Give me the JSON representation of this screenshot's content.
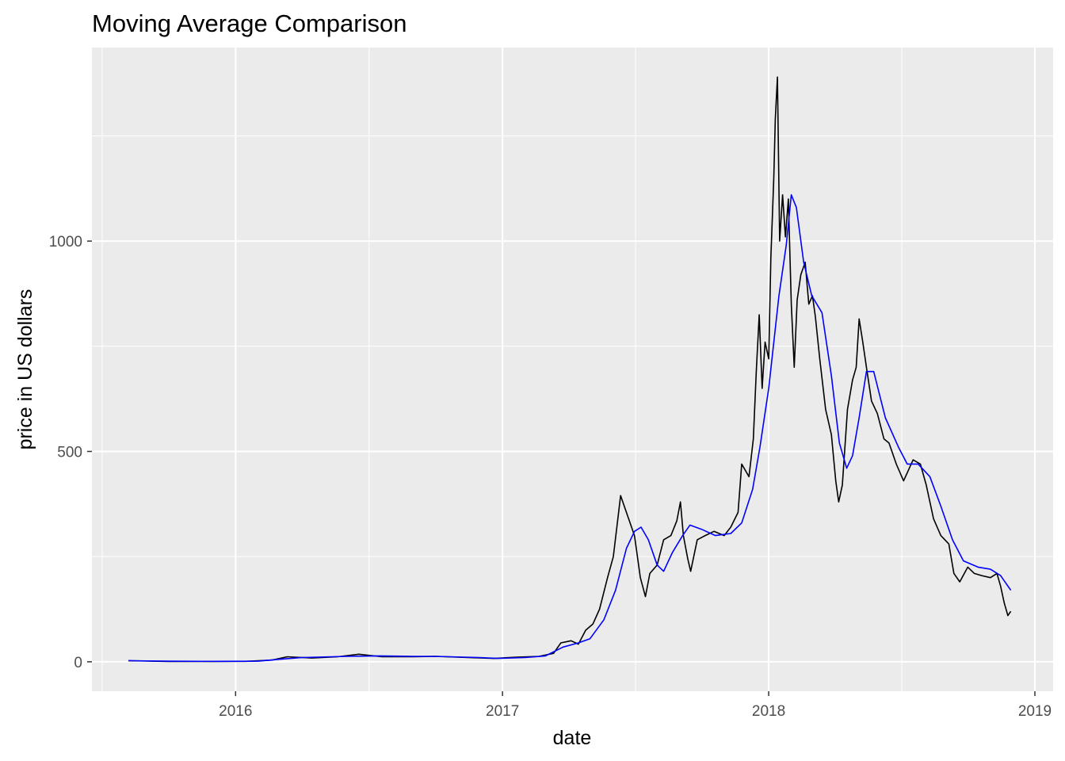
{
  "chart_data": {
    "type": "line",
    "title": "Moving Average Comparison",
    "xlabel": "date",
    "ylabel": "price in US dollars",
    "xlim": [
      "2015-06-18",
      "2019-01-26"
    ],
    "ylim": [
      -70,
      1460
    ],
    "x_ticks": [
      "2016-01-01",
      "2017-01-01",
      "2018-01-01",
      "2019-01-01"
    ],
    "x_tick_labels": [
      "2016",
      "2017",
      "2018",
      "2019"
    ],
    "y_ticks": [
      0,
      500,
      1000
    ],
    "y_tick_labels": [
      "0",
      "500",
      "1000"
    ],
    "y_minor_ticks": [
      250,
      750,
      1250
    ],
    "grid": true,
    "legend": "none",
    "background": "#ebebeb",
    "grid_color": "#ffffff",
    "series": [
      {
        "color": "#000000",
        "points": [
          [
            "2015-08-07",
            2.8
          ],
          [
            "2015-10-01",
            0.6
          ],
          [
            "2015-12-01",
            0.9
          ],
          [
            "2016-01-15",
            1.1
          ],
          [
            "2016-02-20",
            4
          ],
          [
            "2016-03-12",
            12
          ],
          [
            "2016-04-15",
            9
          ],
          [
            "2016-05-20",
            12
          ],
          [
            "2016-06-18",
            18
          ],
          [
            "2016-07-20",
            12
          ],
          [
            "2016-09-01",
            12
          ],
          [
            "2016-10-01",
            13
          ],
          [
            "2016-11-15",
            10
          ],
          [
            "2016-12-20",
            8
          ],
          [
            "2017-01-20",
            11
          ],
          [
            "2017-02-20",
            13
          ],
          [
            "2017-03-12",
            20
          ],
          [
            "2017-03-22",
            45
          ],
          [
            "2017-04-05",
            50
          ],
          [
            "2017-04-15",
            42
          ],
          [
            "2017-04-25",
            75
          ],
          [
            "2017-05-05",
            90
          ],
          [
            "2017-05-14",
            125
          ],
          [
            "2017-05-25",
            200
          ],
          [
            "2017-06-02",
            250
          ],
          [
            "2017-06-12",
            395
          ],
          [
            "2017-06-22",
            345
          ],
          [
            "2017-07-01",
            300
          ],
          [
            "2017-07-09",
            200
          ],
          [
            "2017-07-16",
            155
          ],
          [
            "2017-07-22",
            210
          ],
          [
            "2017-08-01",
            230
          ],
          [
            "2017-08-10",
            290
          ],
          [
            "2017-08-20",
            300
          ],
          [
            "2017-08-28",
            335
          ],
          [
            "2017-09-02",
            380
          ],
          [
            "2017-09-06",
            300
          ],
          [
            "2017-09-12",
            245
          ],
          [
            "2017-09-16",
            215
          ],
          [
            "2017-09-25",
            290
          ],
          [
            "2017-10-06",
            300
          ],
          [
            "2017-10-18",
            310
          ],
          [
            "2017-11-01",
            300
          ],
          [
            "2017-11-10",
            320
          ],
          [
            "2017-11-20",
            355
          ],
          [
            "2017-11-25",
            470
          ],
          [
            "2017-12-05",
            440
          ],
          [
            "2017-12-11",
            530
          ],
          [
            "2017-12-15",
            690
          ],
          [
            "2017-12-19",
            825
          ],
          [
            "2017-12-23",
            650
          ],
          [
            "2017-12-27",
            760
          ],
          [
            "2018-01-01",
            720
          ],
          [
            "2018-01-04",
            960
          ],
          [
            "2018-01-08",
            1150
          ],
          [
            "2018-01-10",
            1290
          ],
          [
            "2018-01-13",
            1390
          ],
          [
            "2018-01-16",
            1000
          ],
          [
            "2018-01-20",
            1110
          ],
          [
            "2018-01-24",
            1010
          ],
          [
            "2018-01-28",
            1100
          ],
          [
            "2018-02-01",
            850
          ],
          [
            "2018-02-05",
            700
          ],
          [
            "2018-02-09",
            860
          ],
          [
            "2018-02-14",
            920
          ],
          [
            "2018-02-20",
            950
          ],
          [
            "2018-02-25",
            850
          ],
          [
            "2018-03-02",
            870
          ],
          [
            "2018-03-06",
            820
          ],
          [
            "2018-03-12",
            720
          ],
          [
            "2018-03-20",
            600
          ],
          [
            "2018-03-28",
            540
          ],
          [
            "2018-04-03",
            430
          ],
          [
            "2018-04-07",
            380
          ],
          [
            "2018-04-12",
            420
          ],
          [
            "2018-04-19",
            600
          ],
          [
            "2018-04-26",
            670
          ],
          [
            "2018-05-01",
            700
          ],
          [
            "2018-05-05",
            815
          ],
          [
            "2018-05-10",
            760
          ],
          [
            "2018-05-15",
            700
          ],
          [
            "2018-05-22",
            620
          ],
          [
            "2018-05-30",
            590
          ],
          [
            "2018-06-08",
            530
          ],
          [
            "2018-06-15",
            520
          ],
          [
            "2018-06-25",
            470
          ],
          [
            "2018-07-05",
            430
          ],
          [
            "2018-07-18",
            480
          ],
          [
            "2018-07-28",
            470
          ],
          [
            "2018-08-05",
            420
          ],
          [
            "2018-08-15",
            340
          ],
          [
            "2018-08-25",
            300
          ],
          [
            "2018-09-05",
            280
          ],
          [
            "2018-09-12",
            210
          ],
          [
            "2018-09-20",
            190
          ],
          [
            "2018-10-01",
            225
          ],
          [
            "2018-10-10",
            210
          ],
          [
            "2018-10-20",
            205
          ],
          [
            "2018-11-01",
            200
          ],
          [
            "2018-11-10",
            210
          ],
          [
            "2018-11-15",
            180
          ],
          [
            "2018-11-20",
            140
          ],
          [
            "2018-11-25",
            110
          ],
          [
            "2018-11-29",
            120
          ]
        ]
      },
      {
        "color": "#0000ff",
        "points": [
          [
            "2015-08-07",
            2.5
          ],
          [
            "2015-10-01",
            1.5
          ],
          [
            "2015-12-01",
            1
          ],
          [
            "2016-02-01",
            1.5
          ],
          [
            "2016-03-01",
            6
          ],
          [
            "2016-04-01",
            10
          ],
          [
            "2016-06-01",
            13
          ],
          [
            "2016-07-15",
            14
          ],
          [
            "2016-09-01",
            13
          ],
          [
            "2016-10-01",
            13
          ],
          [
            "2016-12-01",
            10
          ],
          [
            "2016-12-25",
            8
          ],
          [
            "2017-02-01",
            10
          ],
          [
            "2017-03-01",
            14
          ],
          [
            "2017-03-25",
            35
          ],
          [
            "2017-04-15",
            45
          ],
          [
            "2017-05-01",
            55
          ],
          [
            "2017-05-20",
            100
          ],
          [
            "2017-06-05",
            170
          ],
          [
            "2017-06-20",
            270
          ],
          [
            "2017-07-01",
            310
          ],
          [
            "2017-07-10",
            320
          ],
          [
            "2017-07-20",
            290
          ],
          [
            "2017-08-01",
            230
          ],
          [
            "2017-08-10",
            215
          ],
          [
            "2017-08-22",
            260
          ],
          [
            "2017-09-05",
            300
          ],
          [
            "2017-09-15",
            325
          ],
          [
            "2017-10-01",
            315
          ],
          [
            "2017-10-20",
            300
          ],
          [
            "2017-11-10",
            305
          ],
          [
            "2017-11-25",
            330
          ],
          [
            "2017-12-10",
            410
          ],
          [
            "2017-12-20",
            510
          ],
          [
            "2018-01-01",
            650
          ],
          [
            "2018-01-15",
            870
          ],
          [
            "2018-01-25",
            990
          ],
          [
            "2018-02-01",
            1110
          ],
          [
            "2018-02-08",
            1080
          ],
          [
            "2018-02-18",
            950
          ],
          [
            "2018-03-01",
            870
          ],
          [
            "2018-03-15",
            830
          ],
          [
            "2018-03-28",
            680
          ],
          [
            "2018-04-08",
            520
          ],
          [
            "2018-04-18",
            460
          ],
          [
            "2018-04-26",
            490
          ],
          [
            "2018-05-05",
            580
          ],
          [
            "2018-05-15",
            690
          ],
          [
            "2018-05-25",
            690
          ],
          [
            "2018-06-10",
            580
          ],
          [
            "2018-06-28",
            510
          ],
          [
            "2018-07-10",
            470
          ],
          [
            "2018-07-25",
            470
          ],
          [
            "2018-08-10",
            440
          ],
          [
            "2018-08-25",
            370
          ],
          [
            "2018-09-10",
            290
          ],
          [
            "2018-09-25",
            240
          ],
          [
            "2018-10-15",
            225
          ],
          [
            "2018-11-01",
            220
          ],
          [
            "2018-11-15",
            205
          ],
          [
            "2018-11-29",
            170
          ]
        ]
      }
    ]
  }
}
